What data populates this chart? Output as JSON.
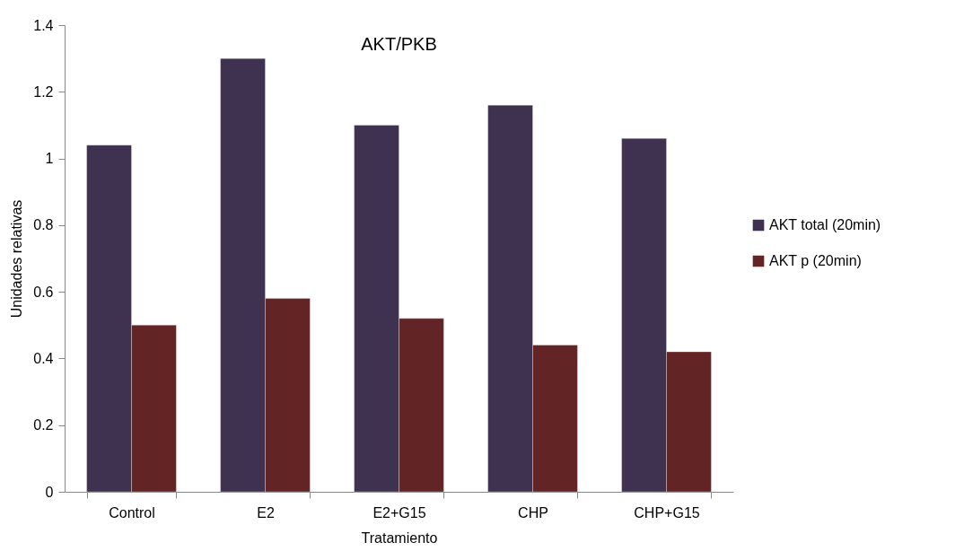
{
  "chart_data": {
    "type": "bar",
    "title": "AKT/PKB",
    "xlabel": "Tratamiento",
    "ylabel": "Unidades relativas",
    "categories": [
      "Control",
      "E2",
      "E2+G15",
      "CHP",
      "CHP+G15"
    ],
    "series": [
      {
        "name": "AKT total (20min)",
        "color": "#3f3150",
        "values": [
          1.04,
          1.3,
          1.1,
          1.16,
          1.06
        ]
      },
      {
        "name": "AKT p (20min)",
        "color": "#632425",
        "values": [
          0.5,
          0.58,
          0.52,
          0.44,
          0.42
        ]
      }
    ],
    "ylim": [
      0,
      1.4
    ],
    "yticks": [
      0,
      0.2,
      0.4,
      0.6,
      0.8,
      1,
      1.2,
      1.4
    ],
    "grid": false,
    "legend": "right"
  }
}
